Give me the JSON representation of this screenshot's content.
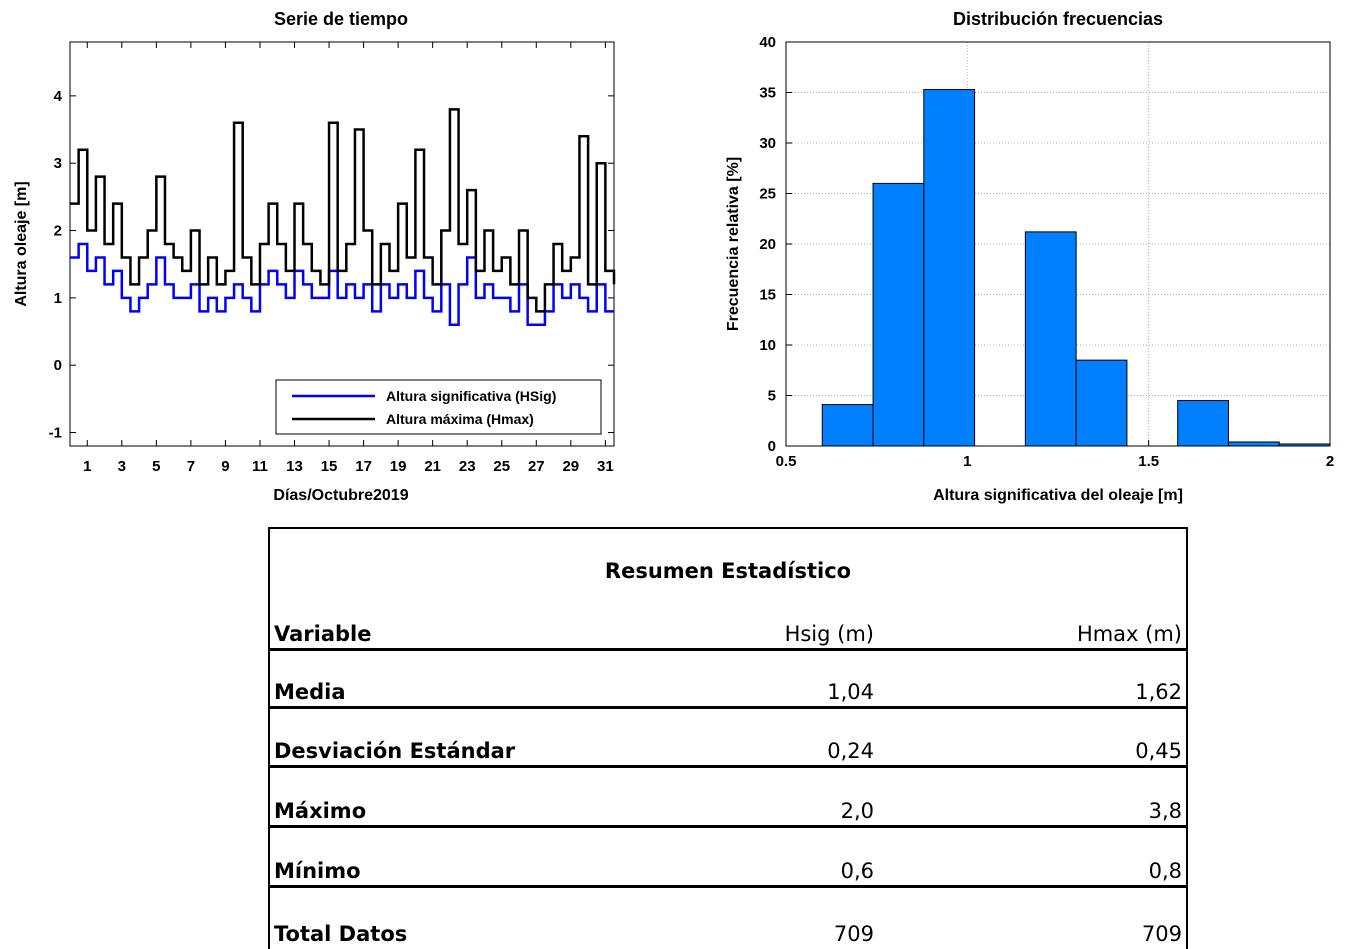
{
  "chart_data": [
    {
      "type": "line",
      "title": "Serie de tiempo",
      "xlabel": "Días/Octubre2019",
      "ylabel": "Altura oleaje [m]",
      "xlim": [
        0,
        31.5
      ],
      "ylim": [
        -1.2,
        4.8
      ],
      "xticks": [
        1,
        3,
        5,
        7,
        9,
        11,
        13,
        15,
        17,
        19,
        21,
        23,
        25,
        27,
        29,
        31
      ],
      "yticks": [
        -1,
        0,
        1,
        2,
        3,
        4
      ],
      "grid": false,
      "legend_position": "bottom-right",
      "colors": {
        "hsig": "#0000ff",
        "hmax": "#000000"
      },
      "series": [
        {
          "name": "Altura significativa (HSig)",
          "x": [
            0,
            0.5,
            1,
            1.5,
            2,
            2.5,
            3,
            3.5,
            4,
            4.5,
            5,
            5.5,
            6,
            6.5,
            7,
            7.5,
            8,
            8.5,
            9,
            9.5,
            10,
            10.5,
            11,
            11.5,
            12,
            12.5,
            13,
            13.5,
            14,
            14.5,
            15,
            15.5,
            16,
            16.5,
            17,
            17.5,
            18,
            18.5,
            19,
            19.5,
            20,
            20.5,
            21,
            21.5,
            22,
            22.5,
            23,
            23.5,
            24,
            24.5,
            25,
            25.5,
            26,
            26.5,
            27,
            27.5,
            28,
            28.5,
            29,
            29.5,
            30,
            30.5,
            31,
            31.5
          ],
          "values": [
            1.6,
            1.8,
            1.4,
            1.6,
            1.2,
            1.4,
            1.0,
            0.8,
            1.0,
            1.2,
            1.6,
            1.2,
            1.0,
            1.0,
            1.2,
            0.8,
            1.0,
            0.8,
            1.0,
            1.2,
            1.0,
            0.8,
            1.2,
            1.4,
            1.2,
            1.0,
            1.4,
            1.2,
            1.0,
            1.0,
            1.4,
            1.0,
            1.2,
            1.0,
            1.2,
            0.8,
            1.2,
            1.0,
            1.2,
            1.0,
            1.4,
            1.0,
            0.8,
            1.2,
            0.6,
            1.2,
            1.6,
            1.0,
            1.2,
            1.0,
            1.0,
            0.8,
            1.2,
            0.6,
            0.6,
            0.8,
            1.2,
            1.0,
            1.2,
            1.0,
            0.8,
            1.2,
            0.8,
            0.8
          ]
        },
        {
          "name": "Altura máxima (Hmax)",
          "x": [
            0,
            0.5,
            1,
            1.5,
            2,
            2.5,
            3,
            3.5,
            4,
            4.5,
            5,
            5.5,
            6,
            6.5,
            7,
            7.5,
            8,
            8.5,
            9,
            9.5,
            10,
            10.5,
            11,
            11.5,
            12,
            12.5,
            13,
            13.5,
            14,
            14.5,
            15,
            15.5,
            16,
            16.5,
            17,
            17.5,
            18,
            18.5,
            19,
            19.5,
            20,
            20.5,
            21,
            21.5,
            22,
            22.5,
            23,
            23.5,
            24,
            24.5,
            25,
            25.5,
            26,
            26.5,
            27,
            27.5,
            28,
            28.5,
            29,
            29.5,
            30,
            30.5,
            31,
            31.5
          ],
          "values": [
            2.4,
            3.2,
            2.0,
            2.8,
            1.8,
            2.4,
            1.6,
            1.2,
            1.6,
            2.0,
            2.8,
            1.8,
            1.6,
            1.4,
            2.0,
            1.2,
            1.6,
            1.2,
            1.4,
            3.6,
            1.6,
            1.2,
            1.8,
            2.4,
            1.8,
            1.4,
            2.4,
            1.8,
            1.4,
            1.2,
            3.6,
            1.4,
            1.8,
            3.5,
            2.0,
            1.2,
            1.8,
            1.4,
            2.4,
            1.6,
            3.2,
            1.6,
            1.2,
            2.0,
            3.8,
            1.8,
            2.6,
            1.4,
            2.0,
            1.4,
            1.6,
            1.2,
            2.0,
            1.0,
            0.8,
            1.2,
            1.8,
            1.4,
            1.6,
            3.4,
            1.2,
            3.0,
            1.4,
            1.2
          ]
        }
      ]
    },
    {
      "type": "bar",
      "title": "Distribución frecuencias",
      "xlabel": "Altura significativa del oleaje [m]",
      "ylabel": "Frecuencia relativa [%]",
      "xlim": [
        0.5,
        2
      ],
      "ylim": [
        0,
        40
      ],
      "xticks": [
        "0.5",
        "1",
        "1.5",
        "2"
      ],
      "yticks": [
        0,
        5,
        10,
        15,
        20,
        25,
        30,
        35,
        40
      ],
      "grid": true,
      "bar_color": "#0080ff",
      "bin_edges": [
        0.6,
        0.74,
        0.88,
        1.02,
        1.16,
        1.3,
        1.44,
        1.58,
        1.72,
        1.86,
        2.0
      ],
      "values": [
        4.1,
        26.0,
        35.3,
        0,
        21.2,
        8.5,
        0,
        4.5,
        0.4,
        0.2
      ]
    }
  ],
  "table": {
    "title": "Resumen Estadístico",
    "header": {
      "variable": "Variable",
      "hsig": "Hsig (m)",
      "hmax": "Hmax (m)"
    },
    "rows": [
      {
        "label": "Media",
        "hsig": "1,04",
        "hmax": "1,62"
      },
      {
        "label": "Desviación Estándar",
        "hsig": "0,24",
        "hmax": "0,45"
      },
      {
        "label": "Máximo",
        "hsig": "2,0",
        "hmax": "3,8"
      },
      {
        "label": "Mínimo",
        "hsig": "0,6",
        "hmax": "0,8"
      },
      {
        "label": "Total Datos",
        "hsig": "709",
        "hmax": "709"
      }
    ]
  }
}
